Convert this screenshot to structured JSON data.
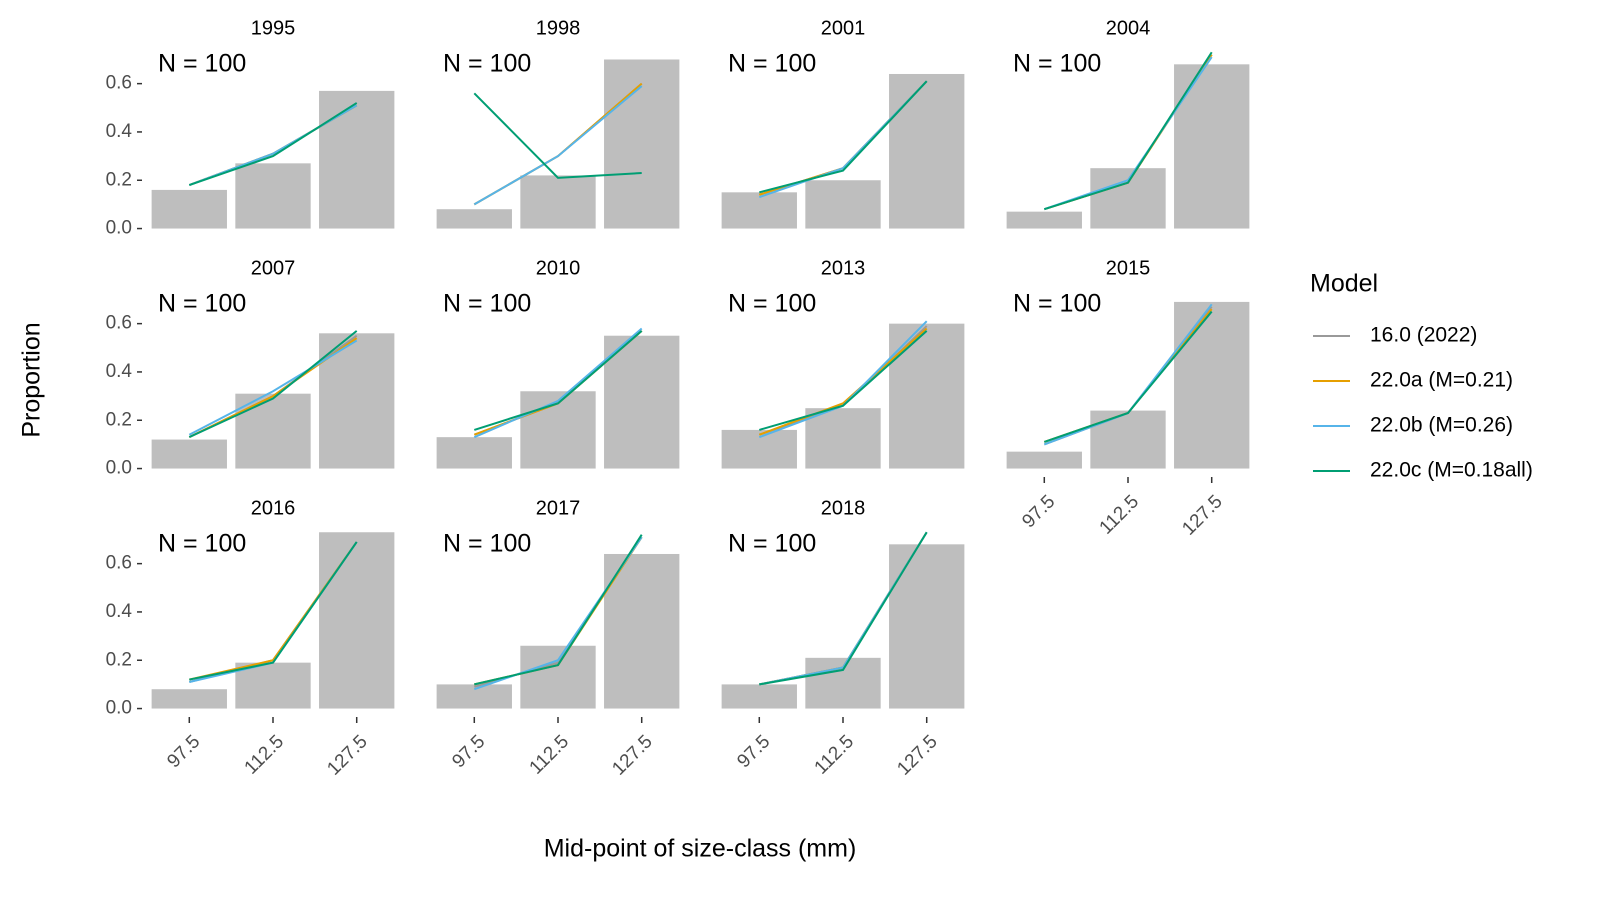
{
  "y_label": "Proportion",
  "x_label": "Mid-point of size-class (mm)",
  "legend_title": "Model",
  "chart_data": [
    {
      "type": "bar",
      "title": "1995",
      "annotation": "N = 100",
      "x": [
        97.5,
        112.5,
        127.5
      ],
      "values": [
        0.16,
        0.27,
        0.57
      ],
      "color": "#bebebe",
      "xlim": [
        90.1,
        134.9
      ],
      "ylim": [
        -0.035,
        0.76
      ],
      "yticks": [
        {
          "value": 0,
          "label": "0.0"
        },
        0.2,
        0.4,
        0.6
      ],
      "series": [
        {
          "name": "16.0 (2022)",
          "color": "#999999",
          "values": [
            0.18,
            0.31,
            0.51
          ]
        },
        {
          "name": "22.0a (M=0.21)",
          "color": "#E69F00",
          "values": [
            0.18,
            0.31,
            0.51
          ]
        },
        {
          "name": "22.0b (M=0.26)",
          "color": "#56B4E9",
          "values": [
            0.18,
            0.31,
            0.51
          ]
        },
        {
          "name": "22.0c (M=0.18all)",
          "color": "#009E73",
          "values": [
            0.18,
            0.3,
            0.52
          ]
        }
      ]
    },
    {
      "type": "bar",
      "title": "1998",
      "annotation": "N = 100",
      "x": [
        97.5,
        112.5,
        127.5
      ],
      "values": [
        0.08,
        0.22,
        0.7
      ],
      "color": "#bebebe",
      "xlim": [
        90.1,
        134.9
      ],
      "ylim": [
        -0.035,
        0.76
      ],
      "series": [
        {
          "name": "16.0 (2022)",
          "color": "#999999",
          "values": [
            0.1,
            0.3,
            0.6
          ]
        },
        {
          "name": "22.0a (M=0.21)",
          "color": "#E69F00",
          "values": [
            0.1,
            0.3,
            0.6
          ]
        },
        {
          "name": "22.0b (M=0.26)",
          "color": "#56B4E9",
          "values": [
            0.1,
            0.3,
            0.59
          ]
        },
        {
          "name": "22.0c (M=0.18all)",
          "color": "#009E73",
          "values": [
            0.56,
            0.21,
            0.23
          ]
        }
      ]
    },
    {
      "type": "bar",
      "title": "2001",
      "annotation": "N = 100",
      "x": [
        97.5,
        112.5,
        127.5
      ],
      "values": [
        0.15,
        0.2,
        0.64
      ],
      "color": "#bebebe",
      "xlim": [
        90.1,
        134.9
      ],
      "ylim": [
        -0.035,
        0.76
      ],
      "series": [
        {
          "name": "16.0 (2022)",
          "color": "#999999",
          "values": [
            0.14,
            0.25,
            0.61
          ]
        },
        {
          "name": "22.0a (M=0.21)",
          "color": "#E69F00",
          "values": [
            0.14,
            0.25,
            0.61
          ]
        },
        {
          "name": "22.0b (M=0.26)",
          "color": "#56B4E9",
          "values": [
            0.13,
            0.25,
            0.61
          ]
        },
        {
          "name": "22.0c (M=0.18all)",
          "color": "#009E73",
          "values": [
            0.15,
            0.24,
            0.61
          ]
        }
      ]
    },
    {
      "type": "bar",
      "title": "2004",
      "annotation": "N = 100",
      "x": [
        97.5,
        112.5,
        127.5
      ],
      "values": [
        0.07,
        0.25,
        0.68
      ],
      "color": "#bebebe",
      "xlim": [
        90.1,
        134.9
      ],
      "ylim": [
        -0.035,
        0.76
      ],
      "series": [
        {
          "name": "16.0 (2022)",
          "color": "#999999",
          "values": [
            0.08,
            0.19,
            0.72
          ]
        },
        {
          "name": "22.0a (M=0.21)",
          "color": "#E69F00",
          "values": [
            0.08,
            0.19,
            0.72
          ]
        },
        {
          "name": "22.0b (M=0.26)",
          "color": "#56B4E9",
          "values": [
            0.08,
            0.2,
            0.71
          ]
        },
        {
          "name": "22.0c (M=0.18all)",
          "color": "#009E73",
          "values": [
            0.08,
            0.19,
            0.73
          ]
        }
      ]
    },
    {
      "type": "bar",
      "title": "2007",
      "annotation": "N = 100",
      "x": [
        97.5,
        112.5,
        127.5
      ],
      "values": [
        0.12,
        0.31,
        0.56
      ],
      "color": "#bebebe",
      "xlim": [
        90.1,
        134.9
      ],
      "ylim": [
        -0.035,
        0.76
      ],
      "yticks": [
        {
          "value": 0,
          "label": "0.0"
        },
        0.2,
        0.4,
        0.6
      ],
      "series": [
        {
          "name": "16.0 (2022)",
          "color": "#999999",
          "values": [
            0.13,
            0.3,
            0.55
          ]
        },
        {
          "name": "22.0a (M=0.21)",
          "color": "#E69F00",
          "values": [
            0.13,
            0.3,
            0.54
          ]
        },
        {
          "name": "22.0b (M=0.26)",
          "color": "#56B4E9",
          "values": [
            0.14,
            0.32,
            0.53
          ]
        },
        {
          "name": "22.0c (M=0.18all)",
          "color": "#009E73",
          "values": [
            0.13,
            0.29,
            0.57
          ]
        }
      ]
    },
    {
      "type": "bar",
      "title": "2010",
      "annotation": "N = 100",
      "x": [
        97.5,
        112.5,
        127.5
      ],
      "values": [
        0.13,
        0.32,
        0.55
      ],
      "color": "#bebebe",
      "xlim": [
        90.1,
        134.9
      ],
      "ylim": [
        -0.035,
        0.76
      ],
      "series": [
        {
          "name": "16.0 (2022)",
          "color": "#999999",
          "values": [
            0.14,
            0.27,
            0.57
          ]
        },
        {
          "name": "22.0a (M=0.21)",
          "color": "#E69F00",
          "values": [
            0.14,
            0.27,
            0.57
          ]
        },
        {
          "name": "22.0b (M=0.26)",
          "color": "#56B4E9",
          "values": [
            0.13,
            0.28,
            0.58
          ]
        },
        {
          "name": "22.0c (M=0.18all)",
          "color": "#009E73",
          "values": [
            0.16,
            0.27,
            0.57
          ]
        }
      ]
    },
    {
      "type": "bar",
      "title": "2013",
      "annotation": "N = 100",
      "x": [
        97.5,
        112.5,
        127.5
      ],
      "values": [
        0.16,
        0.25,
        0.6
      ],
      "color": "#bebebe",
      "xlim": [
        90.1,
        134.9
      ],
      "ylim": [
        -0.035,
        0.76
      ],
      "series": [
        {
          "name": "16.0 (2022)",
          "color": "#999999",
          "values": [
            0.14,
            0.26,
            0.59
          ]
        },
        {
          "name": "22.0a (M=0.21)",
          "color": "#E69F00",
          "values": [
            0.14,
            0.27,
            0.58
          ]
        },
        {
          "name": "22.0b (M=0.26)",
          "color": "#56B4E9",
          "values": [
            0.13,
            0.26,
            0.61
          ]
        },
        {
          "name": "22.0c (M=0.18all)",
          "color": "#009E73",
          "values": [
            0.16,
            0.26,
            0.57
          ]
        }
      ]
    },
    {
      "type": "bar",
      "title": "2015",
      "annotation": "N = 100",
      "x": [
        97.5,
        112.5,
        127.5
      ],
      "values": [
        0.07,
        0.24,
        0.69
      ],
      "color": "#bebebe",
      "xlim": [
        90.1,
        134.9
      ],
      "ylim": [
        -0.035,
        0.76
      ],
      "xticks": [
        97.5,
        112.5,
        127.5
      ],
      "series": [
        {
          "name": "16.0 (2022)",
          "color": "#999999",
          "values": [
            0.1,
            0.23,
            0.67
          ]
        },
        {
          "name": "22.0a (M=0.21)",
          "color": "#E69F00",
          "values": [
            0.11,
            0.23,
            0.66
          ]
        },
        {
          "name": "22.0b (M=0.26)",
          "color": "#56B4E9",
          "values": [
            0.1,
            0.23,
            0.68
          ]
        },
        {
          "name": "22.0c (M=0.18all)",
          "color": "#009E73",
          "values": [
            0.11,
            0.23,
            0.65
          ]
        }
      ]
    },
    {
      "type": "bar",
      "title": "2016",
      "annotation": "N = 100",
      "x": [
        97.5,
        112.5,
        127.5
      ],
      "values": [
        0.08,
        0.19,
        0.73
      ],
      "color": "#bebebe",
      "xlim": [
        90.1,
        134.9
      ],
      "ylim": [
        -0.035,
        0.76
      ],
      "yticks": [
        {
          "value": 0,
          "label": "0.0"
        },
        0.2,
        0.4,
        0.6
      ],
      "xticks": [
        97.5,
        112.5,
        127.5
      ],
      "series": [
        {
          "name": "16.0 (2022)",
          "color": "#999999",
          "values": [
            0.11,
            0.2,
            0.69
          ]
        },
        {
          "name": "22.0a (M=0.21)",
          "color": "#E69F00",
          "values": [
            0.12,
            0.2,
            0.69
          ]
        },
        {
          "name": "22.0b (M=0.26)",
          "color": "#56B4E9",
          "values": [
            0.11,
            0.19,
            0.69
          ]
        },
        {
          "name": "22.0c (M=0.18all)",
          "color": "#009E73",
          "values": [
            0.12,
            0.19,
            0.69
          ]
        }
      ]
    },
    {
      "type": "bar",
      "title": "2017",
      "annotation": "N = 100",
      "x": [
        97.5,
        112.5,
        127.5
      ],
      "values": [
        0.1,
        0.26,
        0.64
      ],
      "color": "#bebebe",
      "xlim": [
        90.1,
        134.9
      ],
      "ylim": [
        -0.035,
        0.76
      ],
      "xticks": [
        97.5,
        112.5,
        127.5
      ],
      "series": [
        {
          "name": "16.0 (2022)",
          "color": "#999999",
          "values": [
            0.09,
            0.19,
            0.71
          ]
        },
        {
          "name": "22.0a (M=0.21)",
          "color": "#E69F00",
          "values": [
            0.1,
            0.18,
            0.71
          ]
        },
        {
          "name": "22.0b (M=0.26)",
          "color": "#56B4E9",
          "values": [
            0.08,
            0.2,
            0.71
          ]
        },
        {
          "name": "22.0c (M=0.18all)",
          "color": "#009E73",
          "values": [
            0.1,
            0.18,
            0.72
          ]
        }
      ]
    },
    {
      "type": "bar",
      "title": "2018",
      "annotation": "N = 100",
      "x": [
        97.5,
        112.5,
        127.5
      ],
      "values": [
        0.1,
        0.21,
        0.68
      ],
      "color": "#bebebe",
      "xlim": [
        90.1,
        134.9
      ],
      "ylim": [
        -0.035,
        0.76
      ],
      "xticks": [
        97.5,
        112.5,
        127.5
      ],
      "series": [
        {
          "name": "16.0 (2022)",
          "color": "#999999",
          "values": [
            0.1,
            0.17,
            0.73
          ]
        },
        {
          "name": "22.0a (M=0.21)",
          "color": "#E69F00",
          "values": [
            0.1,
            0.17,
            0.73
          ]
        },
        {
          "name": "22.0b (M=0.26)",
          "color": "#56B4E9",
          "values": [
            0.1,
            0.17,
            0.73
          ]
        },
        {
          "name": "22.0c (M=0.18all)",
          "color": "#009E73",
          "values": [
            0.1,
            0.16,
            0.73
          ]
        }
      ]
    }
  ]
}
